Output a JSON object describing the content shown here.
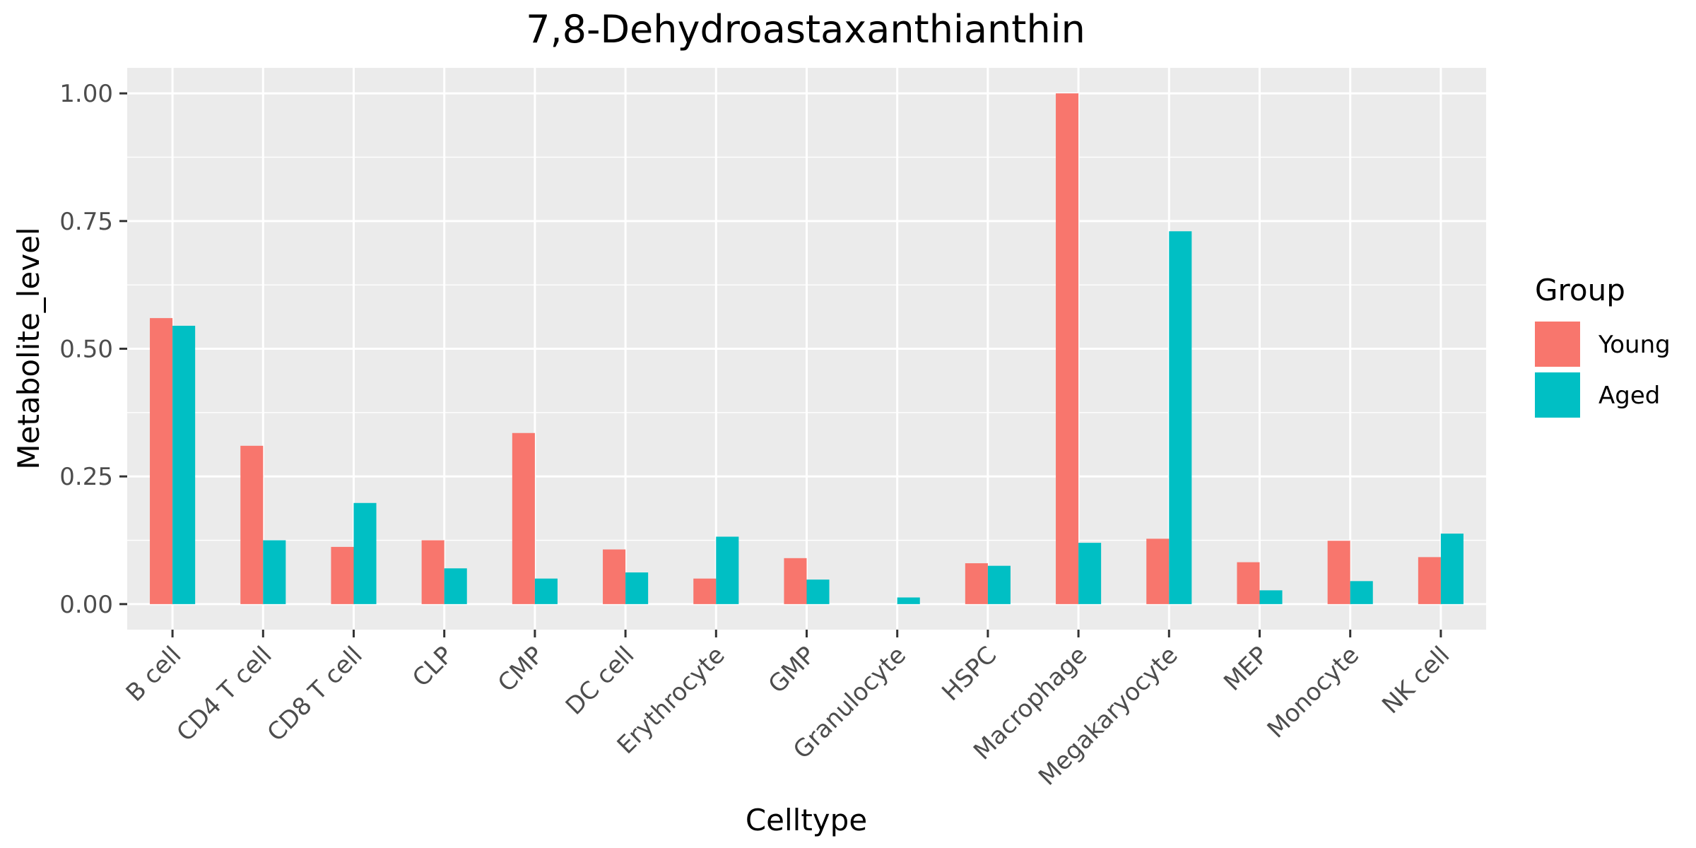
{
  "chart_data": {
    "type": "bar",
    "title": "7,8-Dehydroastaxanthianthin",
    "xlabel": "Celltype",
    "ylabel": "Metabolite_level",
    "categories": [
      "B cell",
      "CD4 T cell",
      "CD8 T cell",
      "CLP",
      "CMP",
      "DC cell",
      "Erythrocyte",
      "GMP",
      "Granulocyte",
      "HSPC",
      "Macrophage",
      "Megakaryocyte",
      "MEP",
      "Monocyte",
      "NK cell"
    ],
    "series": [
      {
        "name": "Young",
        "color": "#F8766D",
        "values": [
          0.56,
          0.31,
          0.112,
          0.125,
          0.335,
          0.107,
          0.05,
          0.09,
          null,
          0.08,
          1.0,
          0.128,
          0.082,
          0.124,
          0.092
        ]
      },
      {
        "name": "Aged",
        "color": "#00BFC4",
        "values": [
          0.545,
          0.125,
          0.198,
          0.07,
          0.05,
          0.062,
          0.132,
          0.048,
          0.013,
          0.075,
          0.12,
          0.73,
          0.027,
          0.045,
          0.138
        ]
      }
    ],
    "ylim": [
      -0.05,
      1.05
    ],
    "yticks": [
      0.0,
      0.25,
      0.5,
      0.75,
      1.0
    ],
    "ytick_labels": [
      "0.00",
      "0.25",
      "0.50",
      "0.75",
      "1.00"
    ],
    "grid": true,
    "panel_background": "#EBEBEB",
    "legend": {
      "title": "Group",
      "position": "right"
    }
  }
}
